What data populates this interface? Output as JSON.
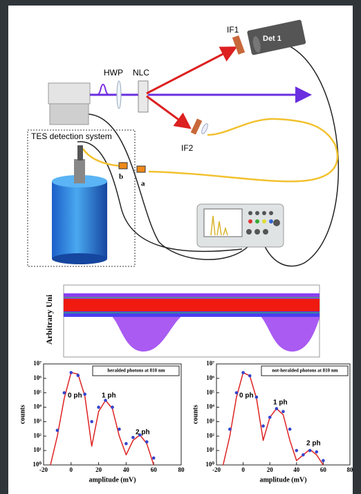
{
  "diagram": {
    "labels": {
      "if1": "IF1",
      "det1": "Det 1",
      "hwp": "HWP",
      "nlc": "NLC",
      "if2": "IF2",
      "tes": "TES detection system",
      "b": "b",
      "a": "a"
    }
  },
  "waveform": {
    "y_label": "Arbitrary Uni"
  },
  "chart_data": [
    {
      "type": "scatter",
      "title": "heralded photons at 810 nm",
      "x_label": "amplitude (mV)",
      "y_label": "counts",
      "log_y": true,
      "xlim": [
        -20,
        80
      ],
      "ylim": [
        1,
        10000000
      ],
      "xticks": [
        -20,
        0,
        20,
        40,
        60,
        80
      ],
      "yticks": [
        {
          "value": 1,
          "label": "10⁰"
        },
        {
          "value": 10,
          "label": "10¹"
        },
        {
          "value": 100,
          "label": "10²"
        },
        {
          "value": 1000,
          "label": "10³"
        },
        {
          "value": 10000,
          "label": "10⁴"
        },
        {
          "value": 100000,
          "label": "10⁵"
        },
        {
          "value": 1000000,
          "label": "10⁶"
        },
        {
          "value": 10000000,
          "label": "10⁷"
        }
      ],
      "series": [
        {
          "style": "line",
          "color": "#dd2222",
          "x": [
            -15,
            -10,
            -5,
            0,
            5,
            10,
            15,
            20,
            25,
            30,
            35,
            40,
            45,
            50,
            55,
            60
          ],
          "values": [
            1,
            100,
            40000,
            2500000,
            2000000,
            60000,
            20,
            5000,
            30000,
            8000,
            100,
            5,
            50,
            120,
            30,
            1
          ]
        },
        {
          "style": "dots",
          "color": "#3344cc",
          "x": [
            -10,
            -5,
            0,
            5,
            10,
            15,
            20,
            25,
            30,
            35,
            40,
            45,
            50,
            55,
            60
          ],
          "values": [
            250,
            100000,
            2500000,
            1600000,
            80000,
            1000,
            10000,
            30000,
            10000,
            300,
            30,
            80,
            120,
            40,
            3
          ]
        }
      ],
      "annotations": [
        "0 ph",
        "1 ph",
        "2 ph"
      ]
    },
    {
      "type": "scatter",
      "title": "not-heralded photons at 810 nm",
      "x_label": "amplitude (mV)",
      "y_label": "counts",
      "log_y": true,
      "xlim": [
        -20,
        80
      ],
      "ylim": [
        1,
        10000000
      ],
      "xticks": [
        -20,
        0,
        20,
        40,
        60,
        80
      ],
      "yticks": [
        {
          "value": 1,
          "label": "10⁰"
        },
        {
          "value": 10,
          "label": "10¹"
        },
        {
          "value": 100,
          "label": "10²"
        },
        {
          "value": 1000,
          "label": "10³"
        },
        {
          "value": 10000,
          "label": "10⁴"
        },
        {
          "value": 100000,
          "label": "10⁵"
        },
        {
          "value": 1000000,
          "label": "10⁶"
        },
        {
          "value": 10000000,
          "label": "10⁷"
        }
      ],
      "series": [
        {
          "style": "line",
          "color": "#dd2222",
          "x": [
            -15,
            -10,
            -5,
            0,
            5,
            10,
            15,
            20,
            25,
            30,
            35,
            40,
            45,
            50,
            55,
            60
          ],
          "values": [
            1,
            100,
            50000,
            2500000,
            1500000,
            40000,
            50,
            2000,
            8000,
            3000,
            50,
            2,
            5,
            12,
            5,
            1
          ]
        },
        {
          "style": "dots",
          "color": "#3344cc",
          "x": [
            -10,
            -5,
            0,
            5,
            10,
            15,
            20,
            25,
            30,
            35,
            40,
            45,
            50,
            55,
            60
          ],
          "values": [
            300,
            100000,
            2500000,
            1500000,
            50000,
            500,
            2000,
            8000,
            5000,
            300,
            10,
            5,
            10,
            8,
            2
          ]
        }
      ],
      "annotations": [
        "0 ph",
        "1 ph",
        "2 ph"
      ]
    }
  ]
}
